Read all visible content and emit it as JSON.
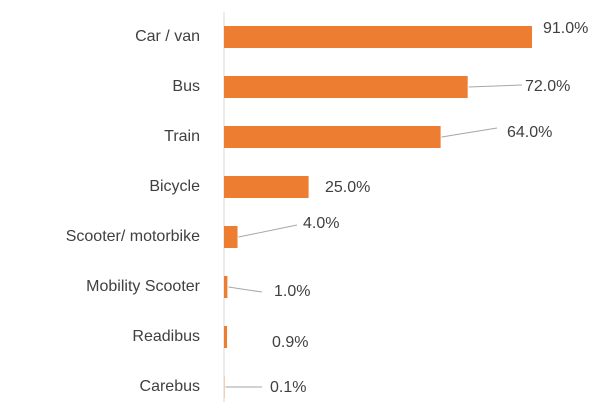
{
  "chart_data": {
    "type": "bar",
    "orientation": "horizontal",
    "categories": [
      "Car / van",
      "Bus",
      "Train",
      "Bicycle",
      "Scooter/ motorbike",
      "Mobility Scooter",
      "Readibus",
      "Carebus"
    ],
    "values": [
      91,
      72,
      64,
      25,
      4,
      1,
      0.9,
      0.1
    ],
    "value_labels": [
      "91.0%",
      "72.0%",
      "64.0%",
      "25.0%",
      "4.0%",
      "1.0%",
      "0.9%",
      "0.1%"
    ],
    "color": "#ed7d31"
  }
}
